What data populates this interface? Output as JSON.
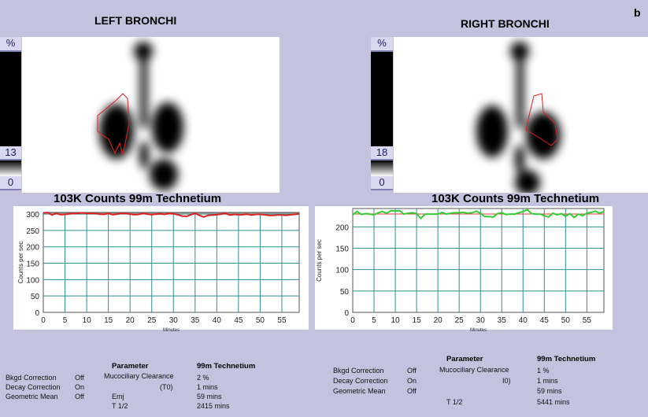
{
  "figure_label": "b",
  "left": {
    "title": "LEFT BRONCHI",
    "colorbar": {
      "unit": "%",
      "max": "13",
      "min": "0"
    },
    "counts_label": "103K Counts 99m Technetium",
    "chart": {
      "type": "line",
      "ylabel": "Counts per sec",
      "xlabel": "Minutes",
      "xlim": [
        0,
        59
      ],
      "ylim": [
        0,
        305
      ],
      "xticks": [
        0,
        5,
        10,
        15,
        20,
        25,
        30,
        35,
        40,
        45,
        50,
        55
      ],
      "yticks": [
        0,
        50,
        100,
        150,
        200,
        250,
        300
      ],
      "grid": true,
      "fit_value": 303,
      "fit_color": "#888888",
      "series_color": "#e02020",
      "values": [
        303,
        305,
        297,
        302,
        298,
        299,
        301,
        302,
        302,
        304,
        302,
        302,
        302,
        300,
        299,
        302,
        298,
        300,
        302,
        302,
        300,
        298,
        299,
        302,
        300,
        298,
        300,
        301,
        299,
        302,
        301,
        298,
        294,
        293,
        298,
        302,
        296,
        291,
        296,
        297,
        298,
        300,
        302,
        297,
        299,
        298,
        298,
        300,
        297,
        299,
        299,
        298,
        296,
        296,
        297,
        297,
        296,
        298,
        299,
        301
      ]
    },
    "params": {
      "settings": [
        {
          "label": "Bkgd Correction",
          "value": "Off"
        },
        {
          "label": "Decay Correction",
          "value": "On"
        },
        {
          "label": "Geometric Mean",
          "value": "Off"
        }
      ],
      "header_param": "Parameter",
      "header_value": "99m Technetium",
      "rows": [
        {
          "label": "Mucociliary Clearance",
          "value": "2 %"
        },
        {
          "label": "(T0)",
          "value": "1 mins"
        },
        {
          "label": "Emj",
          "value": "59 mins"
        },
        {
          "label": "T 1/2",
          "value": "2415 mins"
        }
      ]
    }
  },
  "right": {
    "title": "RIGHT BRONCHI",
    "colorbar": {
      "unit": "%",
      "max": "18",
      "min": "0"
    },
    "counts_label": "103K Counts 99m Technetium",
    "chart": {
      "type": "line",
      "ylabel": "Counts per sec",
      "xlabel": "Minutes",
      "xlim": [
        0,
        59
      ],
      "ylim": [
        0,
        243
      ],
      "xticks": [
        0,
        5,
        10,
        15,
        20,
        25,
        30,
        35,
        40,
        45,
        50,
        55
      ],
      "yticks": [
        0,
        50,
        100,
        150,
        200
      ],
      "grid": true,
      "fit_value": 230,
      "fit_color": "#e04040",
      "series_color": "#33cc33",
      "values": [
        228,
        236,
        229,
        231,
        230,
        228,
        233,
        236,
        232,
        238,
        237,
        238,
        230,
        232,
        233,
        231,
        220,
        230,
        230,
        230,
        230,
        234,
        230,
        232,
        233,
        233,
        234,
        232,
        233,
        237,
        232,
        224,
        224,
        223,
        231,
        233,
        229,
        230,
        230,
        233,
        236,
        240,
        231,
        230,
        230,
        226,
        223,
        232,
        228,
        231,
        225,
        231,
        222,
        230,
        226,
        232,
        234,
        237,
        232,
        236
      ]
    },
    "params": {
      "settings": [
        {
          "label": "Bkgd Correction",
          "value": "Off"
        },
        {
          "label": "Decay Correction",
          "value": "On"
        },
        {
          "label": "Geometric Mean",
          "value": "Off"
        }
      ],
      "header_param": "Parameter",
      "header_value": "99m Technetium",
      "rows": [
        {
          "label": "Mucociliary Clearance",
          "value": "1 %"
        },
        {
          "label": "I0)",
          "value": "1 mins"
        },
        {
          "label": "",
          "value": "59 mins"
        },
        {
          "label": "T 1/2",
          "value": "5441 mins"
        }
      ]
    }
  }
}
